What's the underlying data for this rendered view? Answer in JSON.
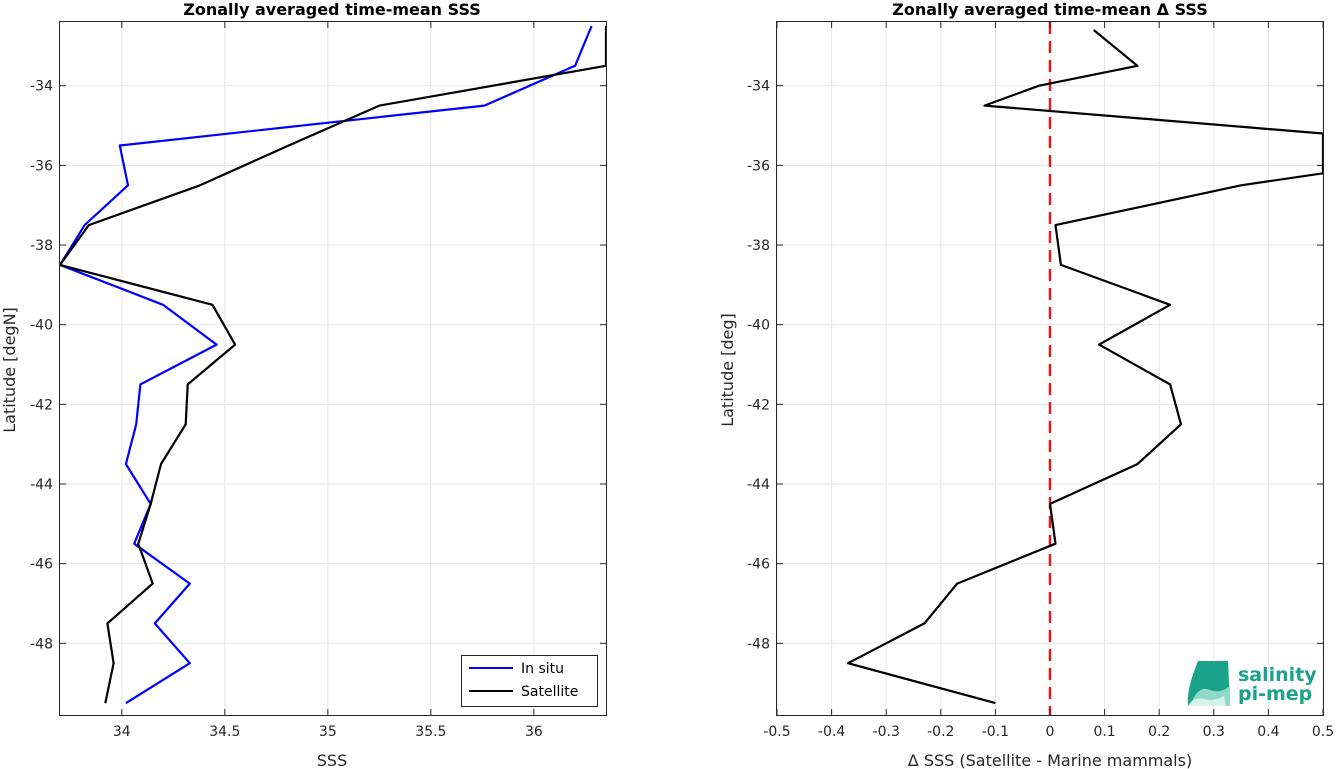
{
  "chart_data": [
    {
      "type": "line",
      "title": "Zonally averaged time-mean SSS",
      "xlabel": "SSS",
      "ylabel": "Latitude [degN]",
      "xlim": [
        33.7,
        36.35
      ],
      "ylim": [
        -49.8,
        -32.4
      ],
      "xticks": [
        34,
        34.5,
        35,
        35.5,
        36
      ],
      "xtick_labels": [
        "34",
        "34.5",
        "35",
        "35.5",
        "36"
      ],
      "yticks": [
        -48,
        -46,
        -44,
        -42,
        -40,
        -38,
        -36,
        -34
      ],
      "ytick_labels": [
        "-48",
        "-46",
        "-44",
        "-42",
        "-40",
        "-38",
        "-36",
        "-34"
      ],
      "grid": true,
      "legend": "bottom-right",
      "series": [
        {
          "name": "In situ",
          "color": "#0000ff",
          "x": [
            36.28,
            36.2,
            35.76,
            33.99,
            34.03,
            33.82,
            33.7,
            34.2,
            34.46,
            34.09,
            34.07,
            34.02,
            34.14,
            34.06,
            34.33,
            34.16,
            34.33,
            34.02
          ],
          "y": [
            -32.5,
            -33.5,
            -34.5,
            -35.5,
            -36.5,
            -37.5,
            -38.5,
            -39.5,
            -40.5,
            -41.5,
            -42.5,
            -43.5,
            -44.5,
            -45.5,
            -46.5,
            -47.5,
            -48.5,
            -49.5
          ]
        },
        {
          "name": "Satellite",
          "color": "#000000",
          "x": [
            36.35,
            36.35,
            35.25,
            34.81,
            34.38,
            33.84,
            33.7,
            34.44,
            34.55,
            34.32,
            34.31,
            34.19,
            34.14,
            34.08,
            34.15,
            33.93,
            33.96,
            33.92
          ],
          "y": [
            -32.5,
            -33.5,
            -34.5,
            -35.5,
            -36.5,
            -37.5,
            -38.5,
            -39.5,
            -40.5,
            -41.5,
            -42.5,
            -43.5,
            -44.5,
            -45.5,
            -46.5,
            -47.5,
            -48.5,
            -49.5
          ]
        }
      ]
    },
    {
      "type": "line",
      "title": "Zonally averaged time-mean Δ SSS",
      "xlabel": "Δ SSS (Satellite - Marine mammals)",
      "ylabel": "Latitude [deg]",
      "xlim": [
        -0.5,
        0.5
      ],
      "ylim": [
        -49.8,
        -32.4
      ],
      "xticks": [
        -0.5,
        -0.4,
        -0.3,
        -0.2,
        -0.1,
        0,
        0.1,
        0.2,
        0.3,
        0.4,
        0.5
      ],
      "xtick_labels": [
        "-0.5",
        "-0.4",
        "-0.3",
        "-0.2",
        "-0.1",
        "0",
        "0.1",
        "0.2",
        "0.3",
        "0.4",
        "0.5"
      ],
      "yticks": [
        -48,
        -46,
        -44,
        -42,
        -40,
        -38,
        -36,
        -34
      ],
      "ytick_labels": [
        "-48",
        "-46",
        "-44",
        "-42",
        "-40",
        "-38",
        "-36",
        "-34"
      ],
      "grid": true,
      "reference_line": {
        "x": 0,
        "color": "#e31a1c",
        "style": "dashed"
      },
      "series": [
        {
          "color": "#000000",
          "x": [
            0.08,
            0.16,
            -0.02,
            -0.12,
            0.5,
            0.5,
            0.5,
            0.35,
            0.01,
            0.02,
            0.22,
            0.09,
            0.22,
            0.24,
            0.16,
            0.0,
            0.01,
            -0.17,
            -0.23,
            -0.37,
            -0.1
          ],
          "y": [
            -32.6,
            -33.5,
            -34.0,
            -34.5,
            -35.2,
            -35.2,
            -36.2,
            -36.5,
            -37.5,
            -38.5,
            -39.5,
            -40.5,
            -41.5,
            -42.5,
            -43.5,
            -44.5,
            -45.5,
            -46.5,
            -47.5,
            -48.5,
            -49.5
          ]
        }
      ]
    }
  ],
  "logo": {
    "line1": "salinity",
    "line2": "pi-mep",
    "color": "#1aa38a"
  }
}
